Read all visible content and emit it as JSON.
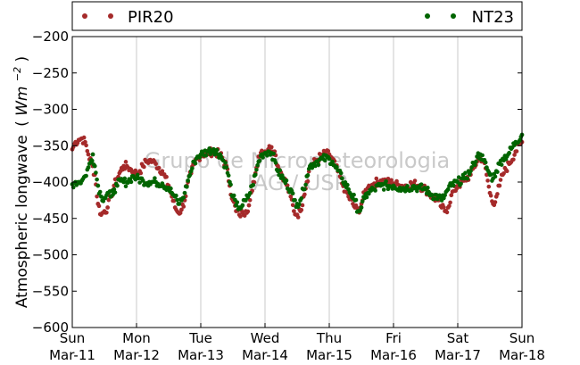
{
  "chart_data": {
    "type": "scatter",
    "title": "",
    "xlabel": "",
    "ylabel": "Atmospheric longwave",
    "ylabel_unit_parts": [
      "(",
      "Wm",
      "−2",
      ")"
    ],
    "ylim": [
      -600,
      -200
    ],
    "yticks": [
      -200,
      -250,
      -300,
      -350,
      -400,
      -450,
      -500,
      -550,
      -600
    ],
    "ytick_labels": [
      "−200",
      "−250",
      "−300",
      "−350",
      "−400",
      "−450",
      "−500",
      "−550",
      "−600"
    ],
    "xlim_days": [
      0,
      7
    ],
    "xticks": [
      {
        "day": 0,
        "weekday": "Sun",
        "date": "Mar-11"
      },
      {
        "day": 1,
        "weekday": "Mon",
        "date": "Mar-12"
      },
      {
        "day": 2,
        "weekday": "Tue",
        "date": "Mar-13"
      },
      {
        "day": 3,
        "weekday": "Wed",
        "date": "Mar-14"
      },
      {
        "day": 4,
        "weekday": "Thu",
        "date": "Mar-15"
      },
      {
        "day": 5,
        "weekday": "Fri",
        "date": "Mar-16"
      },
      {
        "day": 6,
        "weekday": "Sat",
        "date": "Mar-17"
      },
      {
        "day": 7,
        "weekday": "Sun",
        "date": "Mar-18"
      }
    ],
    "grid": {
      "vertical": true,
      "horizontal": false
    },
    "legend_position": "top",
    "watermark": [
      "Grupo de Micrometeorologia",
      "IAG / USP"
    ],
    "series": [
      {
        "name": "PIR20",
        "color": "#a52a2a",
        "points": [
          [
            0.0,
            -355
          ],
          [
            0.05,
            -345
          ],
          [
            0.1,
            -342
          ],
          [
            0.15,
            -340
          ],
          [
            0.2,
            -345
          ],
          [
            0.25,
            -362
          ],
          [
            0.3,
            -375
          ],
          [
            0.35,
            -390
          ],
          [
            0.4,
            -430
          ],
          [
            0.45,
            -445
          ],
          [
            0.5,
            -440
          ],
          [
            0.55,
            -435
          ],
          [
            0.6,
            -420
          ],
          [
            0.65,
            -405
          ],
          [
            0.7,
            -395
          ],
          [
            0.75,
            -385
          ],
          [
            0.8,
            -378
          ],
          [
            0.85,
            -378
          ],
          [
            0.9,
            -382
          ],
          [
            0.95,
            -386
          ],
          [
            1.0,
            -388
          ],
          [
            1.05,
            -385
          ],
          [
            1.1,
            -378
          ],
          [
            1.15,
            -372
          ],
          [
            1.2,
            -370
          ],
          [
            1.25,
            -372
          ],
          [
            1.3,
            -375
          ],
          [
            1.4,
            -385
          ],
          [
            1.5,
            -405
          ],
          [
            1.55,
            -420
          ],
          [
            1.6,
            -435
          ],
          [
            1.65,
            -442
          ],
          [
            1.7,
            -438
          ],
          [
            1.75,
            -425
          ],
          [
            1.8,
            -400
          ],
          [
            1.85,
            -388
          ],
          [
            1.9,
            -375
          ],
          [
            1.95,
            -367
          ],
          [
            2.0,
            -363
          ],
          [
            2.1,
            -360
          ],
          [
            2.2,
            -358
          ],
          [
            2.3,
            -362
          ],
          [
            2.4,
            -378
          ],
          [
            2.45,
            -405
          ],
          [
            2.5,
            -425
          ],
          [
            2.55,
            -440
          ],
          [
            2.6,
            -445
          ],
          [
            2.65,
            -442
          ],
          [
            2.7,
            -440
          ],
          [
            2.75,
            -432
          ],
          [
            2.8,
            -412
          ],
          [
            2.85,
            -388
          ],
          [
            2.9,
            -365
          ],
          [
            2.95,
            -357
          ],
          [
            3.0,
            -358
          ],
          [
            3.05,
            -355
          ],
          [
            3.1,
            -352
          ],
          [
            3.15,
            -358
          ],
          [
            3.2,
            -378
          ],
          [
            3.3,
            -395
          ],
          [
            3.4,
            -420
          ],
          [
            3.45,
            -440
          ],
          [
            3.5,
            -445
          ],
          [
            3.55,
            -440
          ],
          [
            3.6,
            -420
          ],
          [
            3.65,
            -400
          ],
          [
            3.7,
            -380
          ],
          [
            3.8,
            -370
          ],
          [
            3.9,
            -362
          ],
          [
            4.0,
            -362
          ],
          [
            4.05,
            -368
          ],
          [
            4.1,
            -378
          ],
          [
            4.2,
            -402
          ],
          [
            4.3,
            -420
          ],
          [
            4.4,
            -435
          ],
          [
            4.45,
            -440
          ],
          [
            4.5,
            -430
          ],
          [
            4.55,
            -415
          ],
          [
            4.6,
            -408
          ],
          [
            4.7,
            -402
          ],
          [
            4.8,
            -398
          ],
          [
            4.9,
            -400
          ],
          [
            5.0,
            -402
          ],
          [
            5.1,
            -405
          ],
          [
            5.2,
            -405
          ],
          [
            5.3,
            -402
          ],
          [
            5.4,
            -405
          ],
          [
            5.5,
            -410
          ],
          [
            5.6,
            -420
          ],
          [
            5.7,
            -425
          ],
          [
            5.75,
            -435
          ],
          [
            5.8,
            -440
          ],
          [
            5.85,
            -435
          ],
          [
            5.9,
            -418
          ],
          [
            6.0,
            -405
          ],
          [
            6.1,
            -398
          ],
          [
            6.2,
            -390
          ],
          [
            6.25,
            -380
          ],
          [
            6.3,
            -372
          ],
          [
            6.35,
            -365
          ],
          [
            6.4,
            -372
          ],
          [
            6.45,
            -390
          ],
          [
            6.5,
            -415
          ],
          [
            6.55,
            -430
          ],
          [
            6.6,
            -420
          ],
          [
            6.65,
            -405
          ],
          [
            6.7,
            -390
          ],
          [
            6.8,
            -375
          ],
          [
            6.9,
            -358
          ],
          [
            7.0,
            -345
          ]
        ]
      },
      {
        "name": "NT23",
        "color": "#006400",
        "points": [
          [
            0.0,
            -403
          ],
          [
            0.05,
            -400
          ],
          [
            0.1,
            -400
          ],
          [
            0.15,
            -398
          ],
          [
            0.2,
            -392
          ],
          [
            0.25,
            -380
          ],
          [
            0.3,
            -370
          ],
          [
            0.32,
            -362
          ],
          [
            0.35,
            -378
          ],
          [
            0.4,
            -405
          ],
          [
            0.45,
            -420
          ],
          [
            0.5,
            -422
          ],
          [
            0.55,
            -415
          ],
          [
            0.6,
            -420
          ],
          [
            0.65,
            -410
          ],
          [
            0.7,
            -405
          ],
          [
            0.75,
            -398
          ],
          [
            0.8,
            -400
          ],
          [
            0.85,
            -400
          ],
          [
            0.9,
            -396
          ],
          [
            0.95,
            -392
          ],
          [
            1.0,
            -395
          ],
          [
            1.1,
            -398
          ],
          [
            1.2,
            -400
          ],
          [
            1.3,
            -400
          ],
          [
            1.4,
            -402
          ],
          [
            1.5,
            -408
          ],
          [
            1.55,
            -415
          ],
          [
            1.6,
            -420
          ],
          [
            1.65,
            -430
          ],
          [
            1.7,
            -425
          ],
          [
            1.75,
            -415
          ],
          [
            1.8,
            -398
          ],
          [
            1.85,
            -385
          ],
          [
            1.9,
            -372
          ],
          [
            1.95,
            -365
          ],
          [
            2.0,
            -362
          ],
          [
            2.1,
            -358
          ],
          [
            2.2,
            -355
          ],
          [
            2.3,
            -362
          ],
          [
            2.4,
            -380
          ],
          [
            2.45,
            -400
          ],
          [
            2.5,
            -420
          ],
          [
            2.55,
            -432
          ],
          [
            2.6,
            -435
          ],
          [
            2.65,
            -432
          ],
          [
            2.7,
            -425
          ],
          [
            2.75,
            -418
          ],
          [
            2.8,
            -405
          ],
          [
            2.85,
            -390
          ],
          [
            2.9,
            -372
          ],
          [
            2.95,
            -362
          ],
          [
            3.0,
            -360
          ],
          [
            3.05,
            -358
          ],
          [
            3.1,
            -360
          ],
          [
            3.15,
            -370
          ],
          [
            3.2,
            -385
          ],
          [
            3.3,
            -398
          ],
          [
            3.4,
            -410
          ],
          [
            3.45,
            -425
          ],
          [
            3.5,
            -430
          ],
          [
            3.55,
            -425
          ],
          [
            3.6,
            -410
          ],
          [
            3.65,
            -392
          ],
          [
            3.7,
            -378
          ],
          [
            3.8,
            -372
          ],
          [
            3.9,
            -368
          ],
          [
            4.0,
            -368
          ],
          [
            4.05,
            -372
          ],
          [
            4.1,
            -380
          ],
          [
            4.2,
            -395
          ],
          [
            4.3,
            -410
          ],
          [
            4.4,
            -425
          ],
          [
            4.45,
            -440
          ],
          [
            4.5,
            -435
          ],
          [
            4.55,
            -422
          ],
          [
            4.6,
            -415
          ],
          [
            4.7,
            -410
          ],
          [
            4.8,
            -405
          ],
          [
            4.9,
            -405
          ],
          [
            5.0,
            -405
          ],
          [
            5.1,
            -408
          ],
          [
            5.2,
            -408
          ],
          [
            5.3,
            -406
          ],
          [
            5.4,
            -408
          ],
          [
            5.5,
            -410
          ],
          [
            5.6,
            -418
          ],
          [
            5.7,
            -420
          ],
          [
            5.75,
            -425
          ],
          [
            5.8,
            -418
          ],
          [
            5.85,
            -410
          ],
          [
            5.9,
            -405
          ],
          [
            6.0,
            -400
          ],
          [
            6.1,
            -395
          ],
          [
            6.2,
            -385
          ],
          [
            6.25,
            -375
          ],
          [
            6.3,
            -365
          ],
          [
            6.35,
            -362
          ],
          [
            6.4,
            -370
          ],
          [
            6.45,
            -380
          ],
          [
            6.5,
            -390
          ],
          [
            6.55,
            -395
          ],
          [
            6.6,
            -385
          ],
          [
            6.65,
            -375
          ],
          [
            6.7,
            -368
          ],
          [
            6.8,
            -360
          ],
          [
            6.9,
            -345
          ],
          [
            7.0,
            -335
          ]
        ]
      }
    ]
  }
}
